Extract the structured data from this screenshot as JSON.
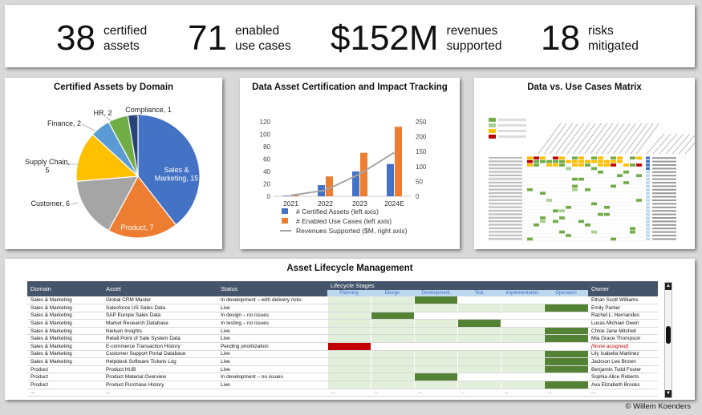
{
  "kpis": [
    {
      "value": "38",
      "label": "certified\nassets"
    },
    {
      "value": "71",
      "label": "enabled\nuse cases"
    },
    {
      "value": "$152M",
      "label": "revenues\nsupported"
    },
    {
      "value": "18",
      "label": "risks\nmitigated"
    }
  ],
  "chart_data": [
    {
      "type": "pie",
      "title": "Certified Assets by Domain",
      "slices": [
        {
          "label": "Sales & Marketing",
          "value": 15,
          "color": "#4472c4"
        },
        {
          "label": "Product",
          "value": 7,
          "color": "#ed7d31"
        },
        {
          "label": "Customer",
          "value": 6,
          "color": "#a5a5a5"
        },
        {
          "label": "Supply Chain",
          "value": 5,
          "color": "#ffc000"
        },
        {
          "label": "Finance",
          "value": 2,
          "color": "#5b9bd5"
        },
        {
          "label": "HR",
          "value": 2,
          "color": "#70ad47"
        },
        {
          "label": "Compliance",
          "value": 1,
          "color": "#264478"
        }
      ],
      "display_labels": [
        "Sales &\nMarketing, 15",
        "Product, 7",
        "Customer, 6",
        "Supply Chain,\n5",
        "Finance, 2",
        "HR, 2",
        "Compliance, 1"
      ]
    },
    {
      "type": "bar",
      "title": "Data Asset Certification and Impact Tracking",
      "categories": [
        "2021",
        "2022",
        "2023",
        "2024E"
      ],
      "series": [
        {
          "name": "# Certified Assets (left axis)",
          "values": [
            1,
            18,
            40,
            52
          ],
          "color": "#4472c4",
          "axis": "left"
        },
        {
          "name": "# Enabled Use Cases (left axis)",
          "values": [
            3,
            32,
            70,
            112
          ],
          "color": "#ed7d31",
          "axis": "left"
        },
        {
          "name": "Revenues Supported ($M, right axis)",
          "values": [
            3,
            20,
            75,
            147
          ],
          "color": "#a5a5a5",
          "axis": "right",
          "type": "line"
        }
      ],
      "left_ticks": [
        "0",
        "20",
        "40",
        "60",
        "80",
        "100",
        "120"
      ],
      "right_ticks": [
        "0",
        "50",
        "100",
        "150",
        "200",
        "250"
      ],
      "ylim_left": [
        0,
        120
      ],
      "ylim_right": [
        0,
        250
      ],
      "legend": "bottom"
    }
  ],
  "matrix": {
    "title": "Data vs. Use Cases Matrix"
  },
  "lifecycle": {
    "title": "Asset Lifecycle Management",
    "headers": {
      "domain": "Domain",
      "asset": "Asset",
      "status": "Status",
      "stages": "Lifecycle Stages",
      "owner": "Owner"
    },
    "stages": [
      "Planning",
      "Design",
      "Development",
      "Test",
      "Implementation",
      "Operation"
    ],
    "rows": [
      {
        "domain": "Sales & Marketing",
        "asset": "Global CRM Master",
        "status": "In development – with delivery risks",
        "stage": 2,
        "color": "#548235",
        "owner": "Ethan Scott Williams"
      },
      {
        "domain": "Sales & Marketing",
        "asset": "Salesforce US Sales Data",
        "status": "Live",
        "stage": 5,
        "color": "#548235",
        "owner": "Emily Parker"
      },
      {
        "domain": "Sales & Marketing",
        "asset": "SAP Europe Sales Data",
        "status": "In design – no issues",
        "stage": 1,
        "color": "#548235",
        "owner": "Rachel L. Hernandes"
      },
      {
        "domain": "Sales & Marketing",
        "asset": "Market Research Database",
        "status": "In testing – no issues",
        "stage": 3,
        "color": "#548235",
        "owner": "Lucas Michael Owen"
      },
      {
        "domain": "Sales & Marketing",
        "asset": "Nielsen Insights",
        "status": "Live",
        "stage": 5,
        "color": "#548235",
        "owner": "Chloe Jane Mitchell"
      },
      {
        "domain": "Sales & Marketing",
        "asset": "Retail Point of Sale System Data",
        "status": "Live",
        "stage": 5,
        "color": "#548235",
        "owner": "Mia Grace Thompson"
      },
      {
        "domain": "Sales & Marketing",
        "asset": "E-commerce Transaction History",
        "status": "Pending prioritization",
        "stage": 0,
        "color": "#c00000",
        "owner": "[None assigned]",
        "owner_alert": true
      },
      {
        "domain": "Sales & Marketing",
        "asset": "Customer Support Portal Database",
        "status": "Live",
        "stage": 5,
        "color": "#548235",
        "owner": "Lily Isabella Martinez"
      },
      {
        "domain": "Sales & Marketing",
        "asset": "Helpdesk Software Tickets Log",
        "status": "Live",
        "stage": 5,
        "color": "#548235",
        "owner": "Jackson Lee Brown"
      },
      {
        "domain": "Product",
        "asset": "Product HUB",
        "status": "Live",
        "stage": 5,
        "color": "#548235",
        "owner": "Benjamin Todd Foster"
      },
      {
        "domain": "Product",
        "asset": "Product Material Overview",
        "status": "In development – no issues",
        "stage": 2,
        "color": "#548235",
        "owner": "Sophia Alice Roberts"
      },
      {
        "domain": "Product",
        "asset": "Product Purchase History",
        "status": "Live",
        "stage": 5,
        "color": "#548235",
        "owner": "Ava Elizabeth Brooks"
      },
      {
        "domain": "...",
        "asset": "...",
        "status": "",
        "stage": -1,
        "color": "",
        "owner": "..."
      }
    ]
  },
  "credit": "© Willem Koenders"
}
